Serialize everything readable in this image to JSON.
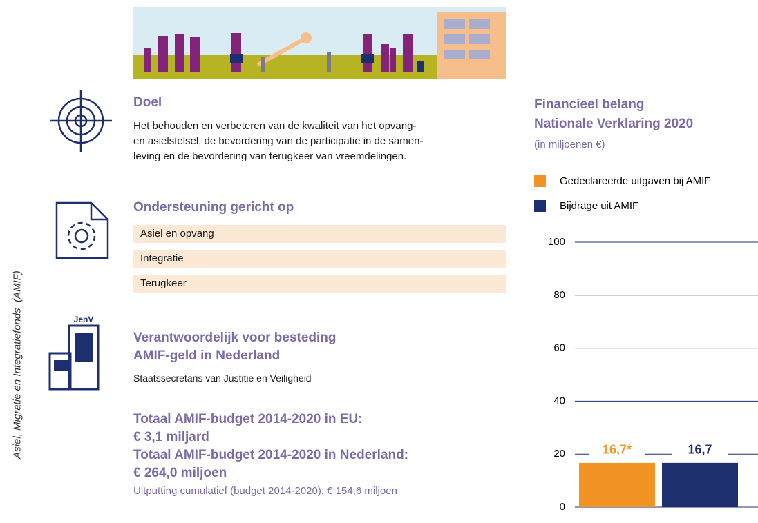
{
  "side_label": "Asiel, Migratie en Integratiefonds  (AMIF)",
  "doel": {
    "title": "Doel",
    "lines": [
      "Het behouden en verbeteren van de kwaliteit van het opvang-",
      "en asielstelsel, de bevordering van de participatie in de samen-",
      "leving en de bevordering van terugkeer van vreemdelingen."
    ]
  },
  "support": {
    "title": "Ondersteuning gericht op",
    "items": [
      "Asiel en opvang",
      "Integratie",
      "Terugkeer"
    ]
  },
  "responsible": {
    "logo": "JenV",
    "title_lines": [
      "Verantwoordelijk voor besteding",
      "AMIF-geld in Nederland"
    ],
    "text": "Staatssecretaris van Justitie en Veiligheid"
  },
  "budget": {
    "lines": [
      "Totaal AMIF-budget 2014-2020 in EU:",
      "€ 3,1 miljard",
      "Totaal AMIF-budget 2014-2020 in Nederland:",
      "€ 264,0 miljoen"
    ],
    "note": "Uitputting cumulatief (budget 2014-2020): € 154,6 miljoen"
  },
  "chart_data": {
    "type": "bar",
    "title": "Financieel belang\nNationale Verklaring 2020",
    "subtitle": "(in miljoenen €)",
    "categories": [
      null
    ],
    "series": [
      {
        "name": "Gedeclareerde uitgaven bij AMIF",
        "color": "#f29423",
        "values": [
          16.7
        ],
        "value_labels": [
          "16,7*"
        ]
      },
      {
        "name": "Bijdrage uit AMIF",
        "color": "#1d2f6f",
        "values": [
          16.7
        ],
        "value_labels": [
          "16,7"
        ]
      }
    ],
    "ylim": [
      0,
      100
    ],
    "yticks": [
      0,
      20,
      40,
      60,
      80,
      100
    ],
    "grid": true
  }
}
